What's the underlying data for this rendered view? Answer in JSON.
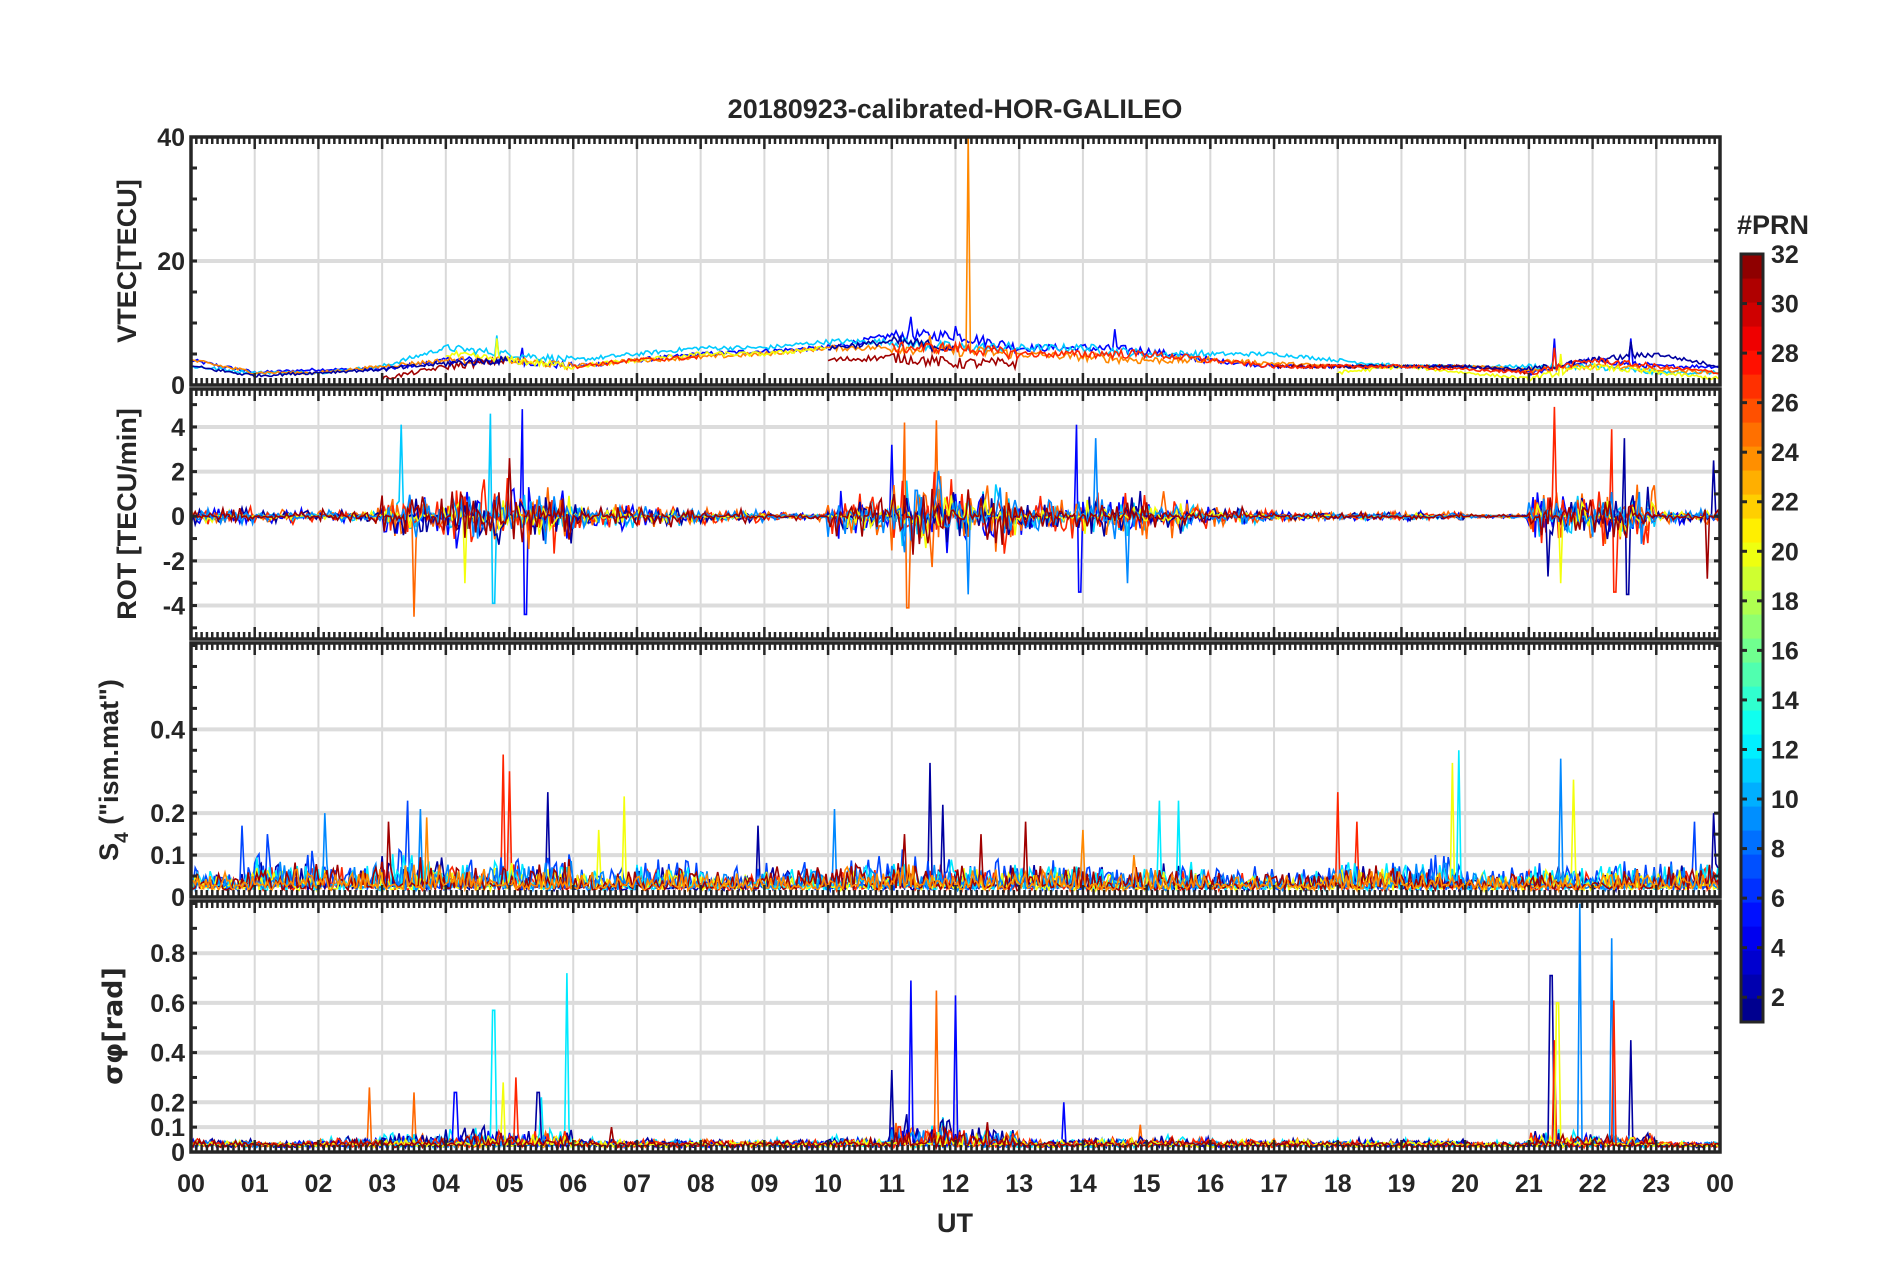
{
  "chart_data": {
    "type": "line",
    "title": "20180923-calibrated-HOR-GALILEO",
    "xlabel": "UT",
    "x_range_hours": [
      0,
      24
    ],
    "x_tick_labels": [
      "00",
      "01",
      "02",
      "03",
      "04",
      "05",
      "06",
      "07",
      "08",
      "09",
      "10",
      "11",
      "12",
      "13",
      "14",
      "15",
      "16",
      "17",
      "18",
      "19",
      "20",
      "21",
      "22",
      "23",
      "00"
    ],
    "grid": true,
    "colorbar": {
      "label": "#PRN",
      "range": [
        1,
        32
      ],
      "ticks": [
        "2",
        "4",
        "6",
        "8",
        "10",
        "12",
        "14",
        "16",
        "18",
        "20",
        "22",
        "24",
        "26",
        "28",
        "30",
        "32"
      ],
      "colormap": "jet",
      "levels": 32,
      "placement": "right"
    },
    "panels": [
      {
        "id": "vtec",
        "ylabel": "VTEC[TECU]",
        "ylim": [
          0,
          40
        ],
        "yticks": [
          0,
          20,
          40
        ],
        "mode": "level",
        "activity": [
          0.5,
          0.4,
          0.4,
          0.6,
          1,
          1,
          0.6,
          0.6,
          0.6,
          0.6,
          0.8,
          1.5,
          1.5,
          1,
          1.2,
          1,
          0.6,
          0.5,
          0.5,
          0.4,
          0.4,
          0.8,
          0.8,
          0.5
        ],
        "series": [
          {
            "prn": 5,
            "values": [
              4,
              2,
              2.5,
              2.5,
              4,
              4,
              3,
              4,
              5,
              5.5,
              6,
              8,
              8,
              6,
              6,
              5.5,
              4,
              3,
              3,
              3,
              3,
              2,
              4,
              3,
              3
            ],
            "peaks": [
              [
                11.3,
                11
              ],
              [
                12.0,
                9.5
              ],
              [
                14.5,
                9
              ],
              [
                21.4,
                7.5
              ],
              [
                22.6,
                7.5
              ],
              [
                5.2,
                6
              ]
            ]
          },
          {
            "prn": 11,
            "values": [
              3,
              2,
              2,
              3,
              6,
              5,
              4,
              5,
              6,
              6,
              7,
              7,
              6,
              6,
              6,
              5,
              5,
              5,
              4,
              3,
              3,
              3,
              3,
              2,
              2
            ],
            "peaks": [
              [
                4.8,
                8
              ]
            ]
          },
          {
            "prn": 24,
            "values": [
              4,
              2,
              2,
              3,
              4,
              4,
              3,
              4,
              4.5,
              5,
              6,
              6,
              5.5,
              5,
              4.5,
              4,
              4,
              3.5,
              3,
              3,
              3,
              2.5,
              3,
              2.5,
              2
            ],
            "peaks": [
              [
                12.2,
                40
              ],
              [
                11.6,
                8
              ]
            ]
          },
          {
            "prn": 31,
            "values": [
              null,
              null,
              null,
              1,
              3,
              4,
              null,
              null,
              null,
              null,
              4,
              4.5,
              3.5,
              3.5,
              null,
              null,
              null,
              3,
              3,
              3,
              3,
              2,
              null,
              null,
              null
            ],
            "peaks": []
          },
          {
            "prn": 20,
            "values": [
              null,
              null,
              null,
              null,
              5,
              4,
              3,
              4,
              5,
              5,
              6,
              null,
              null,
              null,
              null,
              null,
              null,
              null,
              2,
              3,
              2,
              1,
              3,
              2,
              1
            ],
            "peaks": [
              [
                4.8,
                7.5
              ],
              [
                21.5,
                5
              ]
            ]
          },
          {
            "prn": 2,
            "values": [
              3,
              1.5,
              2,
              2.5,
              3.5,
              4,
              null,
              null,
              null,
              null,
              6,
              7,
              6,
              null,
              null,
              null,
              null,
              null,
              3,
              3,
              3,
              2.5,
              4,
              5,
              3
            ],
            "peaks": [
              [
                22.6,
                7
              ]
            ]
          },
          {
            "prn": 27,
            "values": [
              null,
              null,
              null,
              null,
              null,
              null,
              3,
              4,
              4.5,
              null,
              null,
              6,
              6,
              5,
              5,
              5,
              4,
              3,
              3,
              3,
              2.5,
              2,
              4,
              3,
              2
            ],
            "peaks": [
              [
                21.4,
                6
              ]
            ]
          }
        ]
      },
      {
        "id": "rot",
        "ylabel": "ROT [TECU/min]",
        "ylim": [
          -5.5,
          5.7
        ],
        "yticks": [
          -4,
          -2,
          0,
          2,
          4
        ],
        "mode": "symmetric",
        "activity": [
          0.4,
          0.3,
          0.3,
          1,
          1.4,
          1.5,
          0.6,
          0.5,
          0.3,
          0.2,
          1,
          2,
          1.6,
          0.8,
          1.2,
          0.8,
          0.4,
          0.2,
          0.2,
          0.2,
          0.1,
          1.2,
          1.2,
          0.3
        ],
        "series": [
          {
            "prn": 5,
            "scale": 0.8,
            "peaks": [
              [
                5.2,
                4.8
              ],
              [
                5.25,
                -4.4
              ],
              [
                13.9,
                4.1
              ],
              [
                13.95,
                -3.4
              ],
              [
                11.0,
                3.2
              ]
            ]
          },
          {
            "prn": 11,
            "scale": 0.6,
            "peaks": [
              [
                3.3,
                4.1
              ],
              [
                4.7,
                4.6
              ],
              [
                4.75,
                -3.9
              ]
            ]
          },
          {
            "prn": 25,
            "scale": 0.9,
            "peaks": [
              [
                3.5,
                -4.5
              ],
              [
                11.2,
                4.2
              ],
              [
                11.25,
                -4.1
              ],
              [
                11.7,
                4.3
              ]
            ]
          },
          {
            "prn": 27,
            "scale": 0.8,
            "peaks": [
              [
                21.4,
                4.9
              ],
              [
                22.3,
                3.9
              ],
              [
                22.35,
                -3.4
              ]
            ]
          },
          {
            "prn": 2,
            "scale": 0.7,
            "peaks": [
              [
                21.3,
                -2.7
              ],
              [
                22.5,
                3.5
              ],
              [
                22.55,
                -3.5
              ],
              [
                23.9,
                2.5
              ]
            ]
          },
          {
            "prn": 20,
            "scale": 0.5,
            "peaks": [
              [
                21.5,
                -3
              ],
              [
                4.3,
                -3
              ]
            ]
          },
          {
            "prn": 9,
            "scale": 0.7,
            "peaks": [
              [
                14.7,
                -3
              ],
              [
                12.2,
                -3.5
              ],
              [
                14.2,
                3.5
              ]
            ]
          },
          {
            "prn": 31,
            "scale": 0.7,
            "peaks": [
              [
                5.0,
                2.6
              ],
              [
                23.8,
                -2.8
              ]
            ]
          }
        ]
      },
      {
        "id": "s4",
        "ylabel": "S4 (\"ism.mat\")",
        "ylim": [
          0,
          0.606
        ],
        "yticks": [
          0,
          0.1,
          0.2,
          0.4
        ],
        "mode": "positive",
        "baseline": 0.025,
        "activity": [
          0.04,
          0.07,
          0.06,
          0.08,
          0.06,
          0.07,
          0.04,
          0.06,
          0.04,
          0.05,
          0.06,
          0.07,
          0.06,
          0.06,
          0.05,
          0.06,
          0.04,
          0.04,
          0.06,
          0.06,
          0.04,
          0.05,
          0.05,
          0.06
        ],
        "series": [
          {
            "prn": 27,
            "scale": 0.5,
            "peaks": [
              [
                4.9,
                0.34
              ],
              [
                5.0,
                0.3
              ],
              [
                18.0,
                0.25
              ],
              [
                18.3,
                0.18
              ]
            ]
          },
          {
            "prn": 2,
            "scale": 0.6,
            "peaks": [
              [
                5.6,
                0.25
              ],
              [
                11.6,
                0.32
              ],
              [
                11.8,
                0.22
              ],
              [
                23.9,
                0.2
              ],
              [
                8.9,
                0.17
              ]
            ]
          },
          {
            "prn": 7,
            "scale": 0.8,
            "peaks": [
              [
                3.4,
                0.23
              ],
              [
                0.8,
                0.17
              ],
              [
                1.2,
                0.15
              ],
              [
                23.6,
                0.18
              ]
            ]
          },
          {
            "prn": 12,
            "scale": 0.7,
            "peaks": [
              [
                15.2,
                0.23
              ],
              [
                15.5,
                0.23
              ],
              [
                19.9,
                0.35
              ]
            ]
          },
          {
            "prn": 20,
            "scale": 0.5,
            "peaks": [
              [
                6.8,
                0.24
              ],
              [
                19.8,
                0.32
              ],
              [
                21.7,
                0.28
              ],
              [
                6.4,
                0.16
              ]
            ]
          },
          {
            "prn": 9,
            "scale": 0.6,
            "peaks": [
              [
                2.1,
                0.2
              ],
              [
                10.1,
                0.21
              ],
              [
                21.5,
                0.33
              ],
              [
                3.6,
                0.21
              ]
            ]
          },
          {
            "prn": 31,
            "scale": 0.6,
            "peaks": [
              [
                3.1,
                0.18
              ],
              [
                13.1,
                0.18
              ],
              [
                12.4,
                0.15
              ],
              [
                11.2,
                0.15
              ]
            ]
          },
          {
            "prn": 24,
            "scale": 0.5,
            "peaks": [
              [
                14.0,
                0.16
              ],
              [
                3.7,
                0.19
              ],
              [
                14.8,
                0.1
              ]
            ]
          }
        ]
      },
      {
        "id": "sigma",
        "ylabel": "σφ[rad]",
        "ylim": [
          0,
          1.01
        ],
        "yticks": [
          0,
          0.1,
          0.2,
          0.4,
          0.6,
          0.8
        ],
        "mode": "positive",
        "baseline": 0.03,
        "activity": [
          0.02,
          0.01,
          0.03,
          0.04,
          0.06,
          0.06,
          0.02,
          0.02,
          0.02,
          0.02,
          0.03,
          0.1,
          0.06,
          0.02,
          0.03,
          0.03,
          0.02,
          0.02,
          0.02,
          0.02,
          0.01,
          0.05,
          0.05,
          0.01
        ],
        "series": [
          {
            "prn": 12,
            "scale": 0.8,
            "peaks": [
              [
                4.75,
                0.57
              ],
              [
                5.9,
                0.72
              ],
              [
                5.5,
                0.22
              ]
            ]
          },
          {
            "prn": 25,
            "scale": 0.6,
            "peaks": [
              [
                2.8,
                0.26
              ],
              [
                3.5,
                0.24
              ],
              [
                11.7,
                0.65
              ],
              [
                14.9,
                0.11
              ]
            ]
          },
          {
            "prn": 5,
            "scale": 0.6,
            "peaks": [
              [
                11.3,
                0.69
              ],
              [
                12.0,
                0.63
              ],
              [
                13.7,
                0.2
              ],
              [
                4.15,
                0.24
              ]
            ]
          },
          {
            "prn": 2,
            "scale": 0.8,
            "peaks": [
              [
                11.0,
                0.33
              ],
              [
                22.6,
                0.45
              ],
              [
                21.35,
                0.71
              ],
              [
                5.45,
                0.24
              ]
            ]
          },
          {
            "prn": 9,
            "scale": 0.5,
            "peaks": [
              [
                21.8,
                1.0
              ],
              [
                22.3,
                0.86
              ]
            ]
          },
          {
            "prn": 27,
            "scale": 0.6,
            "peaks": [
              [
                21.4,
                0.45
              ],
              [
                22.32,
                0.61
              ],
              [
                5.1,
                0.3
              ]
            ]
          },
          {
            "prn": 20,
            "scale": 0.5,
            "peaks": [
              [
                21.45,
                0.6
              ],
              [
                4.9,
                0.28
              ]
            ]
          },
          {
            "prn": 31,
            "scale": 0.5,
            "peaks": [
              [
                12.5,
                0.12
              ],
              [
                6.6,
                0.1
              ]
            ]
          }
        ]
      }
    ]
  }
}
